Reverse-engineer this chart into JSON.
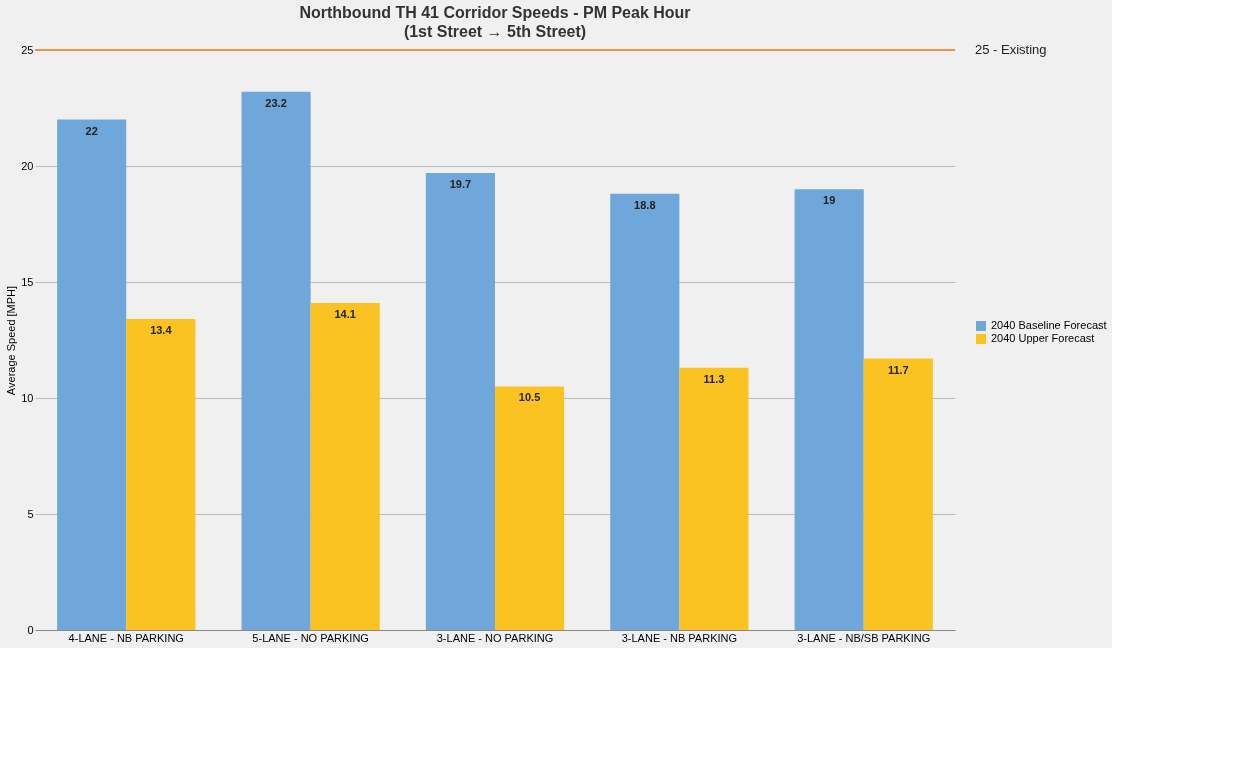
{
  "chart_data": {
    "type": "bar",
    "title": "Northbound TH 41 Corridor Speeds - PM Peak Hour",
    "subtitle": "(1st Street → 5th Street)",
    "ylabel": "Average Speed [MPH]",
    "categories": [
      "4-LANE - NB PARKING",
      "5-LANE - NO PARKING",
      "3-LANE - NO PARKING",
      "3-LANE - NB PARKING",
      "3-LANE - NB/SB PARKING"
    ],
    "series": [
      {
        "name": "2040 Baseline Forecast",
        "color": "#70a7da",
        "values": [
          22,
          23.2,
          19.7,
          18.8,
          19
        ]
      },
      {
        "name": "2040 Upper Forecast",
        "color": "#fbc322",
        "values": [
          13.4,
          14.1,
          10.5,
          11.3,
          11.7
        ]
      }
    ],
    "ylim": [
      0,
      25
    ],
    "yticks": [
      0,
      5,
      10,
      15,
      20,
      25
    ],
    "grid": "y",
    "legend": "right",
    "data_labels": true,
    "ref_lines": [
      {
        "axis": "y",
        "value": 25,
        "label": "25 - Existing",
        "color": "#f0904a"
      }
    ]
  }
}
